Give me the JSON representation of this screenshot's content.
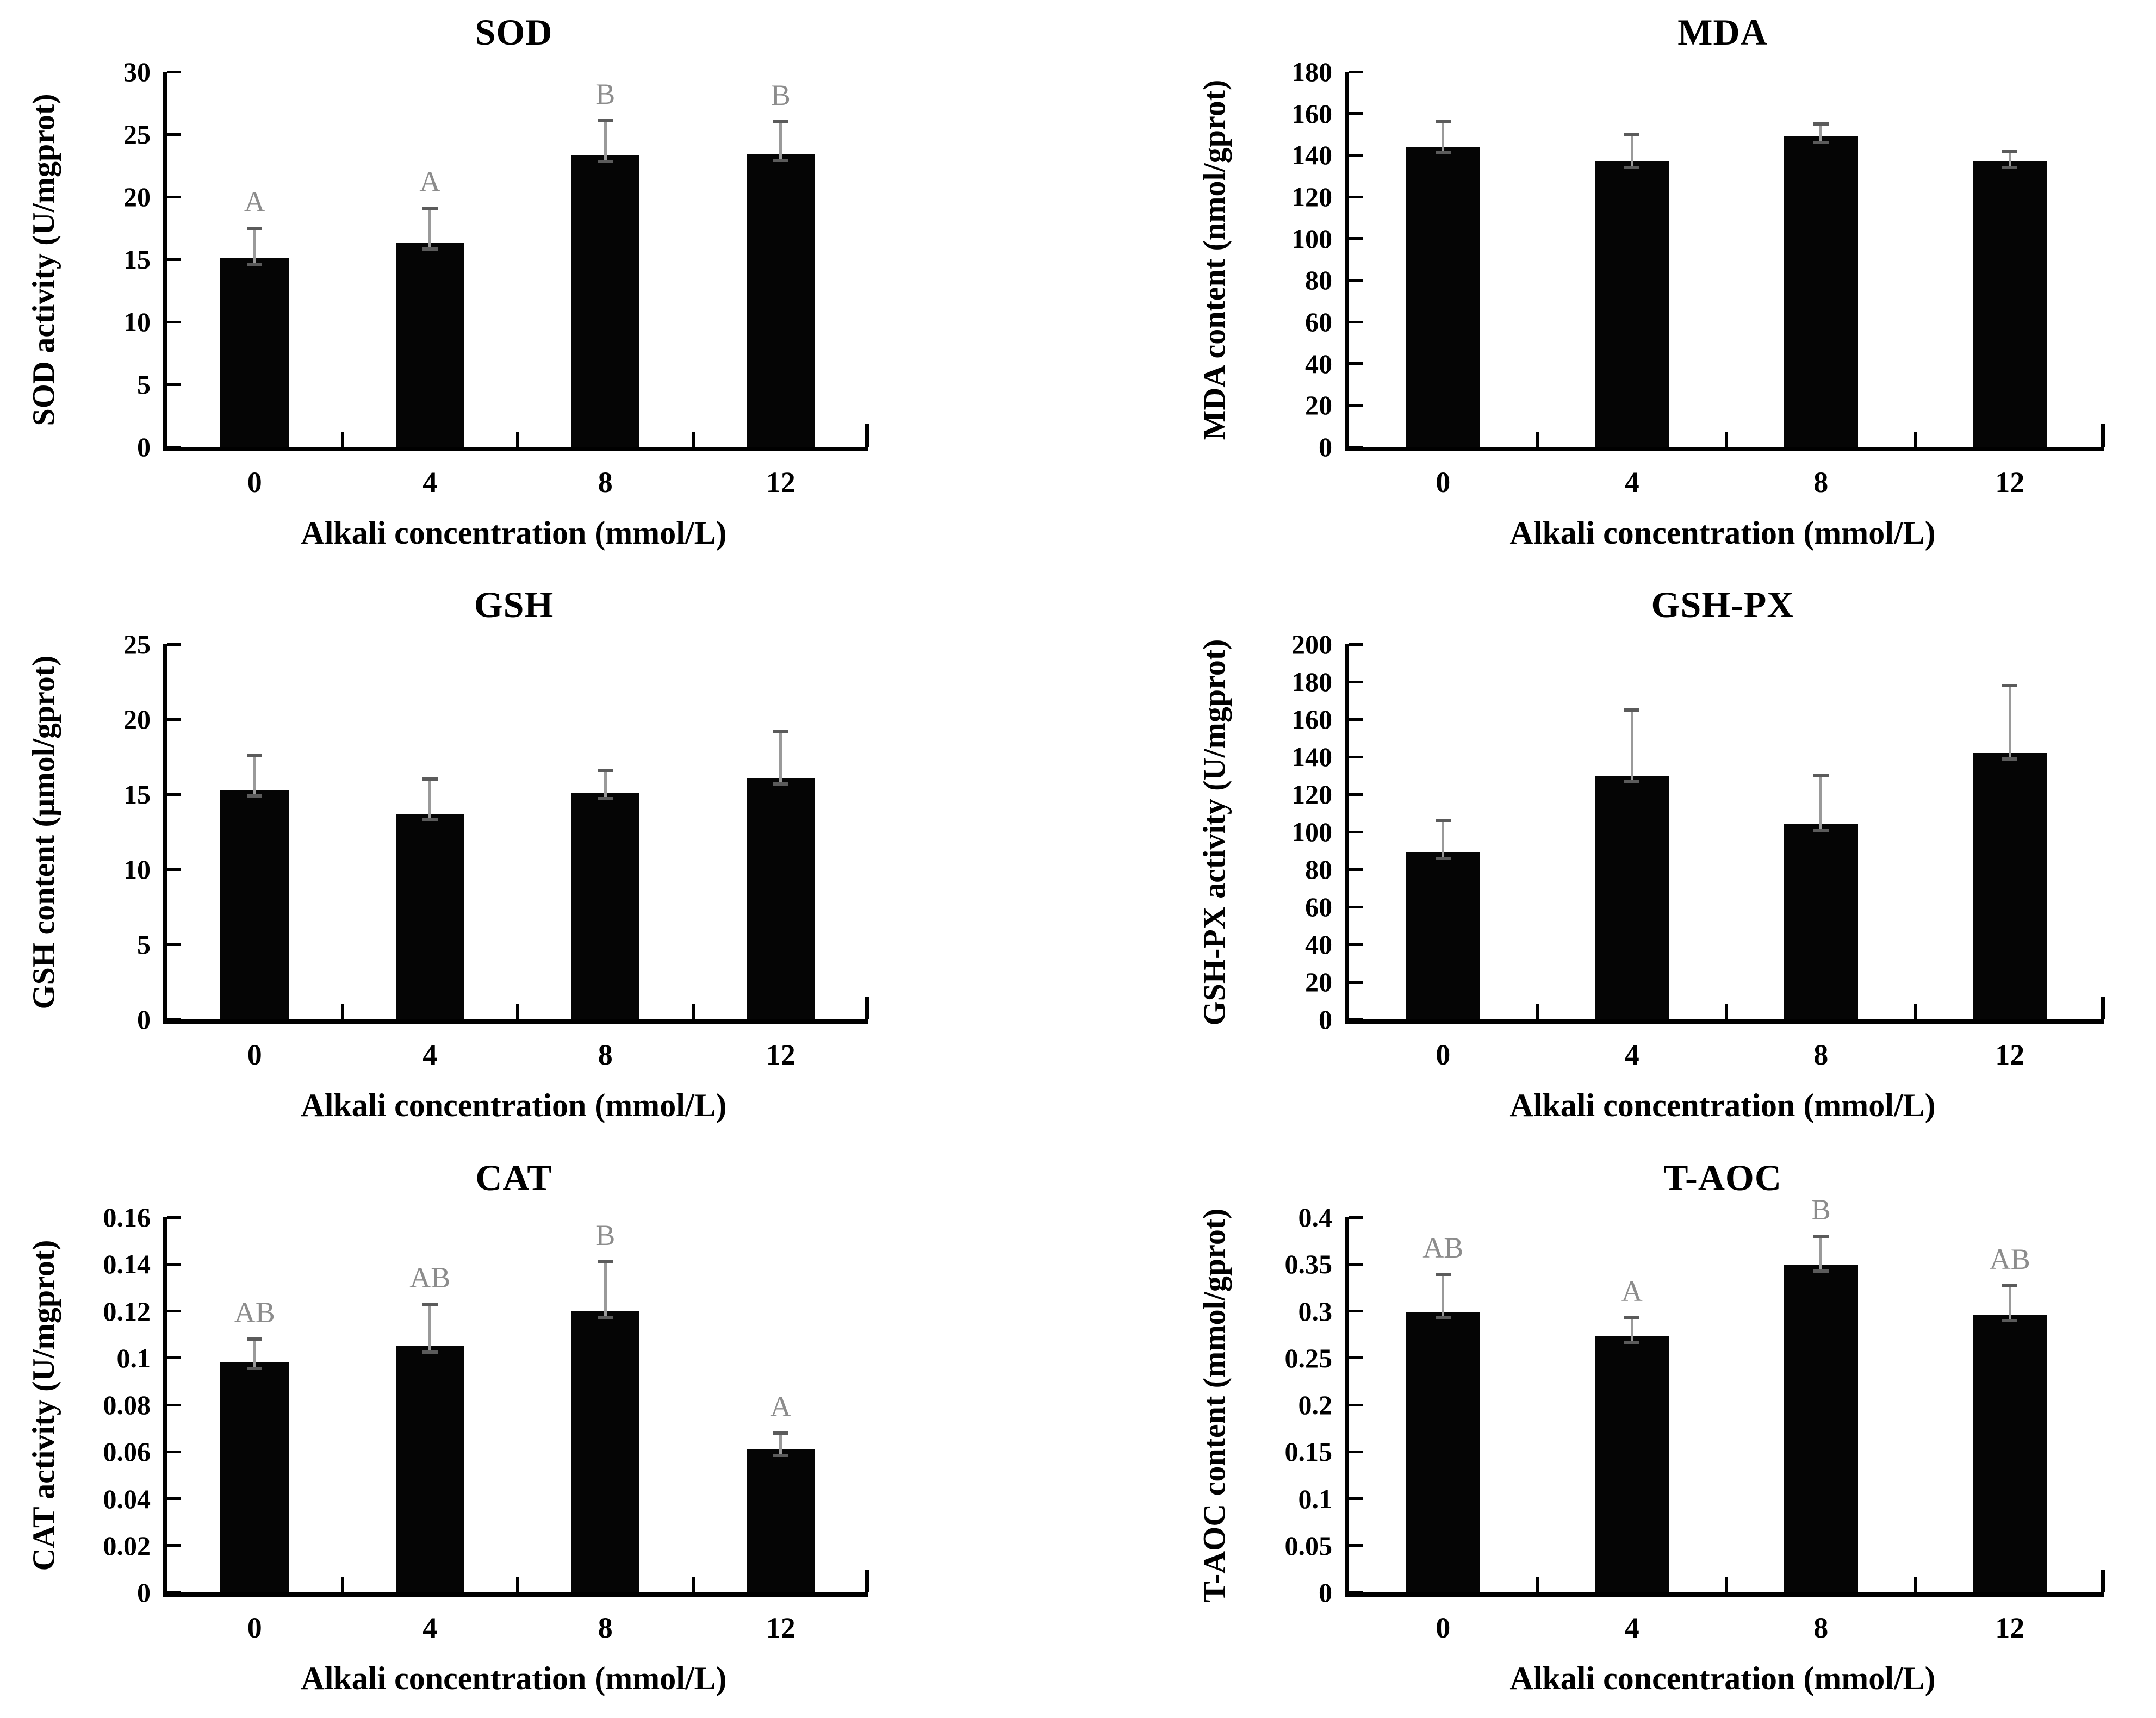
{
  "colors": {
    "bar": "#050505",
    "error_line": "#9a9a9a",
    "error_cap": "#5b5b5b",
    "letter": "#8c8c8c",
    "axis": "#000000",
    "background": "#ffffff"
  },
  "chart_data": [
    {
      "type": "bar",
      "title": "SOD",
      "ylabel": "SOD activity (U/mgprot)",
      "xlabel": "Alkali concentration (mmol/L)",
      "categories": [
        "0",
        "4",
        "8",
        "12"
      ],
      "values": [
        15.1,
        16.3,
        23.3,
        23.4
      ],
      "errors": [
        2.4,
        2.8,
        2.8,
        2.6
      ],
      "letters": [
        "A",
        "A",
        "B",
        "B"
      ],
      "ylim": [
        0,
        30
      ],
      "yticks": [
        "0",
        "5",
        "10",
        "15",
        "20",
        "25",
        "30"
      ],
      "grid": false,
      "legend": null
    },
    {
      "type": "bar",
      "title": "MDA",
      "ylabel": "MDA content (nmol/gprot)",
      "xlabel": "Alkali concentration (mmol/L)",
      "categories": [
        "0",
        "4",
        "8",
        "12"
      ],
      "values": [
        144,
        137,
        149,
        137
      ],
      "errors": [
        12,
        13,
        6,
        5
      ],
      "letters": null,
      "ylim": [
        0,
        180
      ],
      "yticks": [
        "0",
        "20",
        "40",
        "60",
        "80",
        "100",
        "120",
        "140",
        "160",
        "180"
      ],
      "grid": false,
      "legend": null
    },
    {
      "type": "bar",
      "title": "GSH",
      "ylabel": "GSH content (µmol/gprot)",
      "xlabel": "Alkali concentration (mmol/L)",
      "categories": [
        "0",
        "4",
        "8",
        "12"
      ],
      "values": [
        15.3,
        13.7,
        15.1,
        16.1
      ],
      "errors": [
        2.3,
        2.3,
        1.5,
        3.1
      ],
      "letters": null,
      "ylim": [
        0,
        25
      ],
      "yticks": [
        "0",
        "5",
        "10",
        "15",
        "20",
        "25"
      ],
      "grid": false,
      "legend": null
    },
    {
      "type": "bar",
      "title": "GSH-PX",
      "ylabel": "GSH-PX activity (U/mgprot)",
      "xlabel": "Alkali concentration (mmol/L)",
      "categories": [
        "0",
        "4",
        "8",
        "12"
      ],
      "values": [
        89,
        130,
        104,
        142
      ],
      "errors": [
        17,
        35,
        26,
        36
      ],
      "letters": null,
      "ylim": [
        0,
        200
      ],
      "yticks": [
        "0",
        "20",
        "40",
        "60",
        "80",
        "100",
        "120",
        "140",
        "160",
        "180",
        "200"
      ],
      "grid": false,
      "legend": null
    },
    {
      "type": "bar",
      "title": "CAT",
      "ylabel": "CAT activity (U/mgprot)",
      "xlabel": "Alkali concentration (mmol/L)",
      "categories": [
        "0",
        "4",
        "8",
        "12"
      ],
      "values": [
        0.098,
        0.105,
        0.12,
        0.061
      ],
      "errors": [
        0.01,
        0.018,
        0.021,
        0.007
      ],
      "letters": [
        "AB",
        "AB",
        "B",
        "A"
      ],
      "ylim": [
        0,
        0.16
      ],
      "yticks": [
        "0",
        "0.02",
        "0.04",
        "0.06",
        "0.08",
        "0.1",
        "0.12",
        "0.14",
        "0.16"
      ],
      "grid": false,
      "legend": null
    },
    {
      "type": "bar",
      "title": "T-AOC",
      "ylabel": "T-AOC content (mmol/gprot)",
      "xlabel": "Alkali concentration (mmol/L)",
      "categories": [
        "0",
        "4",
        "8",
        "12"
      ],
      "values": [
        0.299,
        0.273,
        0.349,
        0.296
      ],
      "errors": [
        0.04,
        0.02,
        0.031,
        0.031
      ],
      "letters": [
        "AB",
        "A",
        "B",
        "AB"
      ],
      "ylim": [
        0,
        0.4
      ],
      "yticks": [
        "0",
        "0.05",
        "0.1",
        "0.15",
        "0.2",
        "0.25",
        "0.3",
        "0.35",
        "0.4"
      ],
      "grid": false,
      "legend": null
    }
  ]
}
